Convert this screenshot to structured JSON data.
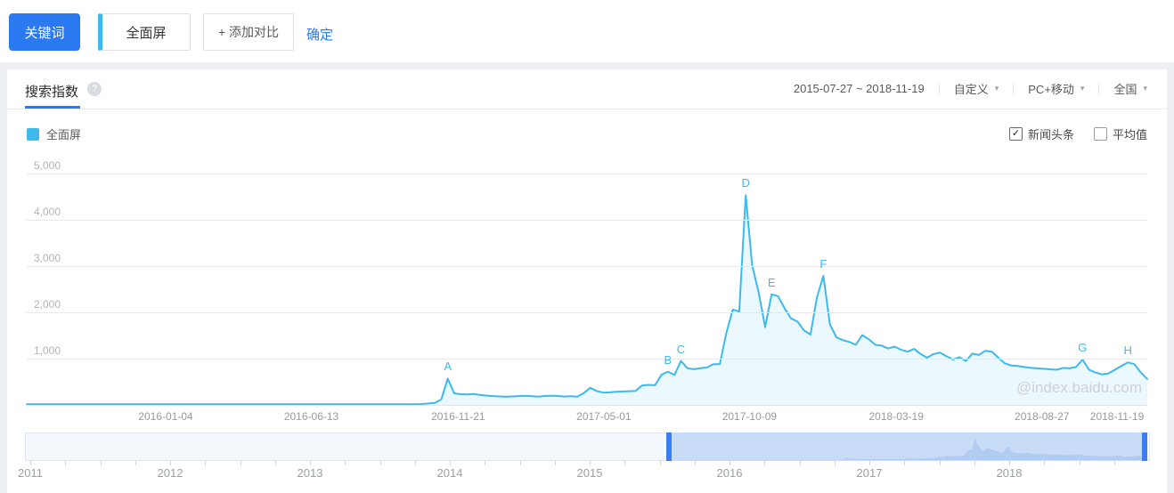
{
  "toolbar": {
    "keyword_label": "关键词",
    "keyword_value": "全面屏",
    "add_compare_label": "+ 添加对比",
    "confirm_label": "确定"
  },
  "header": {
    "tab": "搜索指数",
    "date_range": "2015-07-27 ~ 2018-11-19",
    "range_mode": "自定义",
    "device": "PC+移动",
    "region": "全国"
  },
  "icons": {
    "question": "?",
    "check": "✓",
    "caret": "▾"
  },
  "legend": {
    "series_label": "全面屏",
    "series_color": "#3db9ee",
    "checkboxes": [
      {
        "label": "新闻头条",
        "checked": true
      },
      {
        "label": "平均值",
        "checked": false
      }
    ]
  },
  "watermark": "@index.baidu.com",
  "colors": {
    "accent_blue": "#2b7af2",
    "line_cyan": "#3db9ee",
    "selection_blue": "#c9dcf7",
    "handle_blue": "#3c7ef0"
  },
  "chart_data": {
    "type": "line",
    "title": "搜索指数",
    "series_name": "全面屏",
    "xlabel": "",
    "ylabel": "",
    "ylim": [
      0,
      5000
    ],
    "grid": true,
    "y_ticks": [
      {
        "value": 1000,
        "label": "1,000"
      },
      {
        "value": 2000,
        "label": "2,000"
      },
      {
        "value": 3000,
        "label": "3,000"
      },
      {
        "value": 4000,
        "label": "4,000"
      },
      {
        "value": 5000,
        "label": "5,000"
      }
    ],
    "x_tick_labels": [
      {
        "label": "2016-01-04",
        "pos": 0.124
      },
      {
        "label": "2016-06-13",
        "pos": 0.254
      },
      {
        "label": "2016-11-21",
        "pos": 0.385
      },
      {
        "label": "2017-05-01",
        "pos": 0.515
      },
      {
        "label": "2017-10-09",
        "pos": 0.645
      },
      {
        "label": "2018-03-19",
        "pos": 0.776
      },
      {
        "label": "2018-08-27",
        "pos": 0.906
      },
      {
        "label": "2018-11-19",
        "pos": 0.973
      }
    ],
    "values": [
      15,
      15,
      15,
      15,
      15,
      15,
      15,
      15,
      15,
      15,
      15,
      15,
      15,
      15,
      15,
      15,
      15,
      15,
      15,
      15,
      15,
      15,
      15,
      15,
      15,
      15,
      15,
      15,
      15,
      15,
      15,
      15,
      15,
      15,
      15,
      15,
      15,
      15,
      15,
      15,
      15,
      15,
      15,
      15,
      15,
      15,
      15,
      15,
      15,
      15,
      15,
      15,
      15,
      15,
      15,
      15,
      15,
      15,
      15,
      15,
      15,
      20,
      30,
      45,
      120,
      570,
      250,
      230,
      225,
      235,
      215,
      200,
      190,
      182,
      176,
      183,
      190,
      196,
      188,
      178,
      192,
      200,
      192,
      180,
      188,
      178,
      255,
      370,
      300,
      265,
      272,
      282,
      290,
      296,
      302,
      420,
      432,
      425,
      650,
      720,
      645,
      950,
      795,
      772,
      792,
      808,
      878,
      880,
      1540,
      2060,
      2020,
      4530,
      3020,
      2430,
      1680,
      2390,
      2350,
      2090,
      1870,
      1800,
      1610,
      1520,
      2320,
      2790,
      1740,
      1460,
      1400,
      1360,
      1300,
      1510,
      1420,
      1300,
      1280,
      1220,
      1260,
      1190,
      1150,
      1210,
      1100,
      1020,
      1100,
      1130,
      1050,
      980,
      1030,
      950,
      1110,
      1080,
      1170,
      1150,
      1020,
      900,
      850,
      840,
      820,
      800,
      790,
      780,
      770,
      760,
      800,
      790,
      820,
      980,
      760,
      700,
      660,
      680,
      760,
      840,
      920,
      880,
      700,
      560
    ],
    "annotations": [
      {
        "label": "A",
        "index": 65
      },
      {
        "label": "B",
        "index": 99
      },
      {
        "label": "C",
        "index": 101
      },
      {
        "label": "D",
        "index": 111
      },
      {
        "label": "E",
        "index": 115
      },
      {
        "label": "F",
        "index": 123
      },
      {
        "label": "G",
        "index": 163
      },
      {
        "label": "H",
        "index": 170
      }
    ]
  },
  "timeline": {
    "years": [
      "2011",
      "2012",
      "2013",
      "2014",
      "2015",
      "2016",
      "2017",
      "2018"
    ]
  }
}
